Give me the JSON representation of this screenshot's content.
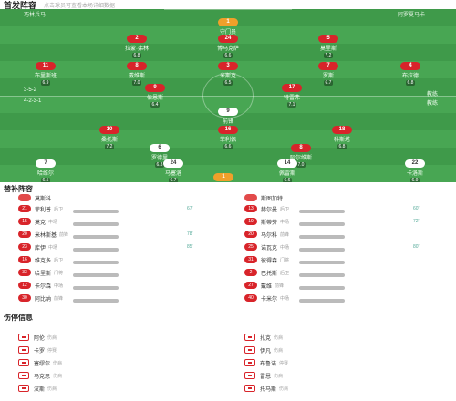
{
  "header": {
    "title": "首发阵容",
    "subtitle": "点击球员可查看本场详细数据"
  },
  "pitch": {
    "home_label": "巧林兵马",
    "away_label": "阿罗夏马卡",
    "home_formation": "3-5-2",
    "away_formation": "4-2-3-1",
    "home_coach": "教练",
    "away_coach": "教练",
    "home_players": [
      {
        "num": "1",
        "name": "守门员",
        "rating": "7.4",
        "color": "gold"
      },
      {
        "num": "2",
        "name": "拉蒙·弗林",
        "rating": "6.8",
        "color": "red"
      },
      {
        "num": "24",
        "name": "博马克萨",
        "rating": "6.6",
        "color": "red"
      },
      {
        "num": "5",
        "name": "莫里斯",
        "rating": "7.2",
        "color": "red"
      },
      {
        "num": "11",
        "name": "布里斯班",
        "rating": "6.9",
        "color": "red"
      },
      {
        "num": "8",
        "name": "戴维斯",
        "rating": "7.0",
        "color": "red"
      },
      {
        "num": "3",
        "name": "米斯克",
        "rating": "6.5",
        "color": "red"
      },
      {
        "num": "7",
        "name": "罗斯",
        "rating": "6.7",
        "color": "red"
      },
      {
        "num": "4",
        "name": "布拉德",
        "rating": "6.8",
        "color": "red"
      },
      {
        "num": "9",
        "name": "伯恩斯",
        "rating": "6.4",
        "color": "red"
      },
      {
        "num": "17",
        "name": "特雷弗",
        "rating": "7.1",
        "color": "red"
      }
    ],
    "away_players": [
      {
        "num": "9",
        "name": "前锋",
        "rating": "6.9",
        "color": "white"
      },
      {
        "num": "10",
        "name": "桑托斯",
        "rating": "7.2",
        "color": "red"
      },
      {
        "num": "16",
        "name": "菲利佩",
        "rating": "6.6",
        "color": "red"
      },
      {
        "num": "18",
        "name": "科斯塔",
        "rating": "6.8",
        "color": "red"
      },
      {
        "num": "6",
        "name": "罗德里",
        "rating": "6.3",
        "color": "white"
      },
      {
        "num": "8",
        "name": "阿尔维斯",
        "rating": "7.0",
        "color": "red"
      },
      {
        "num": "7",
        "name": "哈维尔",
        "rating": "6.5",
        "color": "white"
      },
      {
        "num": "24",
        "name": "马塞洛",
        "rating": "6.7",
        "color": "white"
      },
      {
        "num": "14",
        "name": "佩雷斯",
        "rating": "6.6",
        "color": "white"
      },
      {
        "num": "22",
        "name": "卡洛斯",
        "rating": "6.9",
        "color": "white"
      },
      {
        "num": "1",
        "name": "门将",
        "rating": "7.3",
        "color": "gold"
      }
    ]
  },
  "subs": {
    "title": "替补阵容",
    "home_team": "莫斯科",
    "away_team": "斯图加特",
    "home": [
      {
        "num": "21",
        "name": "菲利普",
        "role": "后卫",
        "minute": "67'"
      },
      {
        "num": "15",
        "name": "莫克",
        "role": "中场",
        "minute": ""
      },
      {
        "num": "20",
        "name": "米林斯基",
        "role": "前锋",
        "minute": "78'"
      },
      {
        "num": "23",
        "name": "库伊",
        "role": "中场",
        "minute": "85'"
      },
      {
        "num": "16",
        "name": "维克多",
        "role": "后卫",
        "minute": ""
      },
      {
        "num": "33",
        "name": "哈里斯",
        "role": "门将",
        "minute": ""
      },
      {
        "num": "12",
        "name": "卡尔森",
        "role": "中场",
        "minute": ""
      },
      {
        "num": "30",
        "name": "阿比纳",
        "role": "前锋",
        "minute": ""
      }
    ],
    "away": [
      {
        "num": "13",
        "name": "赫尔曼",
        "role": "后卫",
        "minute": "60'"
      },
      {
        "num": "19",
        "name": "斯蒂芬",
        "role": "中场",
        "minute": "72'"
      },
      {
        "num": "20",
        "name": "马尔科",
        "role": "前锋",
        "minute": ""
      },
      {
        "num": "25",
        "name": "诺瓦克",
        "role": "中场",
        "minute": "80'"
      },
      {
        "num": "31",
        "name": "彼得森",
        "role": "门将",
        "minute": ""
      },
      {
        "num": "2",
        "name": "巴托斯",
        "role": "后卫",
        "minute": ""
      },
      {
        "num": "27",
        "name": "戴维",
        "role": "前锋",
        "minute": ""
      },
      {
        "num": "40",
        "name": "卡米尔",
        "role": "中场",
        "minute": ""
      }
    ]
  },
  "injuries": {
    "title": "伤停信息",
    "home": [
      {
        "name": "阿伦",
        "reason": "伤病"
      },
      {
        "name": "卡罗",
        "reason": "停赛"
      },
      {
        "name": "塞缪尔",
        "reason": "伤病"
      },
      {
        "name": "马克思",
        "reason": "伤病"
      },
      {
        "name": "汉斯",
        "reason": "伤病"
      }
    ],
    "away": [
      {
        "name": "扎克",
        "reason": "伤病"
      },
      {
        "name": "伊凡",
        "reason": "伤病"
      },
      {
        "name": "布鲁诺",
        "reason": "停赛"
      },
      {
        "name": "雷恩",
        "reason": "伤病"
      },
      {
        "name": "托马斯",
        "reason": "伤病"
      }
    ]
  },
  "colors": {
    "pitch": "#3f9a4a",
    "accent": "#d8242a",
    "gold": "#f0a02a"
  }
}
